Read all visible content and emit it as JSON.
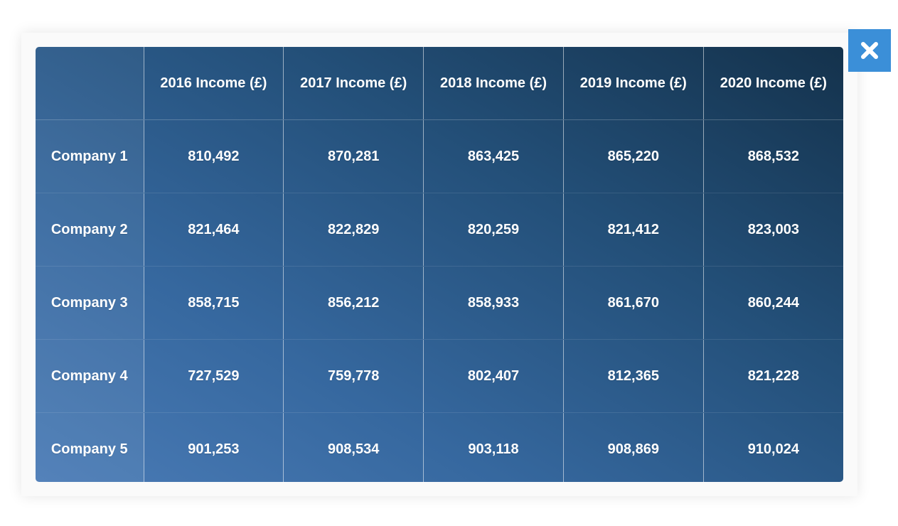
{
  "close_icon": "close-icon",
  "accent_color": "#3b8fd8",
  "table": {
    "columns": [
      "2016 Income (£)",
      "2017 Income (£)",
      "2018 Income (£)",
      "2019 Income (£)",
      "2020 Income (£)"
    ],
    "rows": [
      {
        "label": "Company 1",
        "values": [
          "810,492",
          "870,281",
          "863,425",
          "865,220",
          "868,532"
        ]
      },
      {
        "label": "Company 2",
        "values": [
          "821,464",
          "822,829",
          "820,259",
          "821,412",
          "823,003"
        ]
      },
      {
        "label": "Company 3",
        "values": [
          "858,715",
          "856,212",
          "858,933",
          "861,670",
          "860,244"
        ]
      },
      {
        "label": "Company 4",
        "values": [
          "727,529",
          "759,778",
          "802,407",
          "812,365",
          "821,228"
        ]
      },
      {
        "label": "Company 5",
        "values": [
          "901,253",
          "908,534",
          "903,118",
          "908,869",
          "910,024"
        ]
      }
    ]
  }
}
